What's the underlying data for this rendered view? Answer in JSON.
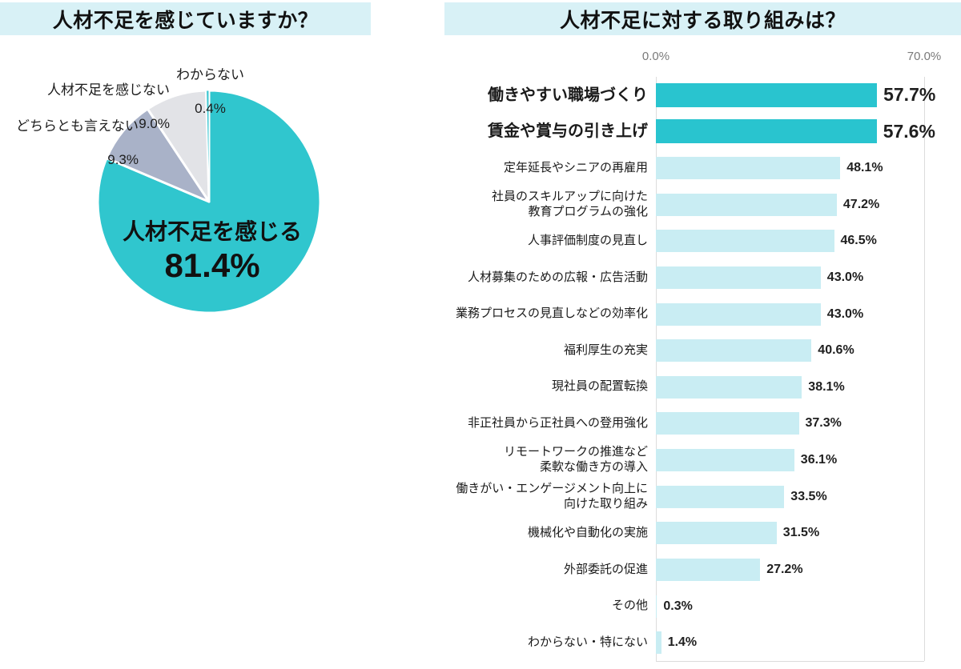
{
  "chart_data": [
    {
      "type": "pie",
      "title": "人材不足を感じていますか？",
      "legend_position": "outside-labels",
      "slices": [
        {
          "label": "人材不足を感じる",
          "value": 81.4,
          "value_label": "81.4%",
          "color": "#30c6ce"
        },
        {
          "label": "どちらとも言えない",
          "value": 9.3,
          "value_label": "9.3%",
          "color": "#a9b2c8"
        },
        {
          "label": "人材不足を感じない",
          "value": 9.0,
          "value_label": "9.0%",
          "color": "#e2e3e7"
        },
        {
          "label": "わからない",
          "value": 0.4,
          "value_label": "0.4%",
          "color": "#45c9d3"
        }
      ]
    },
    {
      "type": "bar",
      "orientation": "horizontal",
      "title": "人材不足に対する取り組みは？",
      "axis": {
        "min": 0,
        "max": 70,
        "tick_labels": [
          "0.0%",
          "70.0%"
        ],
        "grid": true
      },
      "colors": {
        "emphasis": "#29c4cf",
        "normal": "#c9edf3"
      },
      "rows": [
        {
          "label": "働きやすい職場づくり",
          "value": 57.7,
          "value_label": "57.7%",
          "emphasis": true
        },
        {
          "label": "賃金や賞与の引き上げ",
          "value": 57.6,
          "value_label": "57.6%",
          "emphasis": true
        },
        {
          "label": "定年延長やシニアの再雇用",
          "value": 48.1,
          "value_label": "48.1%",
          "emphasis": false
        },
        {
          "label": "社員のスキルアップに向けた\n教育プログラムの強化",
          "value": 47.2,
          "value_label": "47.2%",
          "emphasis": false
        },
        {
          "label": "人事評価制度の見直し",
          "value": 46.5,
          "value_label": "46.5%",
          "emphasis": false
        },
        {
          "label": "人材募集のための広報・広告活動",
          "value": 43.0,
          "value_label": "43.0%",
          "emphasis": false
        },
        {
          "label": "業務プロセスの見直しなどの効率化",
          "value": 43.0,
          "value_label": "43.0%",
          "emphasis": false
        },
        {
          "label": "福利厚生の充実",
          "value": 40.6,
          "value_label": "40.6%",
          "emphasis": false
        },
        {
          "label": "現社員の配置転換",
          "value": 38.1,
          "value_label": "38.1%",
          "emphasis": false
        },
        {
          "label": "非正社員から正社員への登用強化",
          "value": 37.3,
          "value_label": "37.3%",
          "emphasis": false
        },
        {
          "label": "リモートワークの推進など\n柔軟な働き方の導入",
          "value": 36.1,
          "value_label": "36.1%",
          "emphasis": false
        },
        {
          "label": "働きがい・エンゲージメント向上に\n向けた取り組み",
          "value": 33.5,
          "value_label": "33.5%",
          "emphasis": false
        },
        {
          "label": "機械化や自動化の実施",
          "value": 31.5,
          "value_label": "31.5%",
          "emphasis": false
        },
        {
          "label": "外部委託の促進",
          "value": 27.2,
          "value_label": "27.2%",
          "emphasis": false
        },
        {
          "label": "その他",
          "value": 0.3,
          "value_label": "0.3%",
          "emphasis": false
        },
        {
          "label": "わからない・特にない",
          "value": 1.4,
          "value_label": "1.4%",
          "emphasis": false
        }
      ]
    }
  ]
}
